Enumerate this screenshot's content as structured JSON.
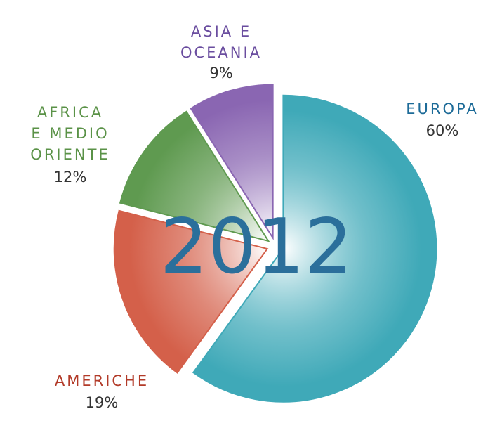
{
  "chart_data": {
    "type": "pie",
    "title": "2012",
    "categories": [
      "EUROPA",
      "AMERICHE",
      "AFRICA\nE MEDIO\nORIENTE",
      "ASIA E\nOCEANIA"
    ],
    "values": [
      60,
      19,
      12,
      9
    ],
    "value_labels": [
      "60%",
      "19%",
      "12%",
      "9%"
    ],
    "colors": [
      "#3fa9b8",
      "#d4604a",
      "#5f9a50",
      "#8a66b2"
    ],
    "label_colors": [
      "#1d6b98",
      "#b23a28",
      "#5a9247",
      "#6a4d9f"
    ]
  }
}
